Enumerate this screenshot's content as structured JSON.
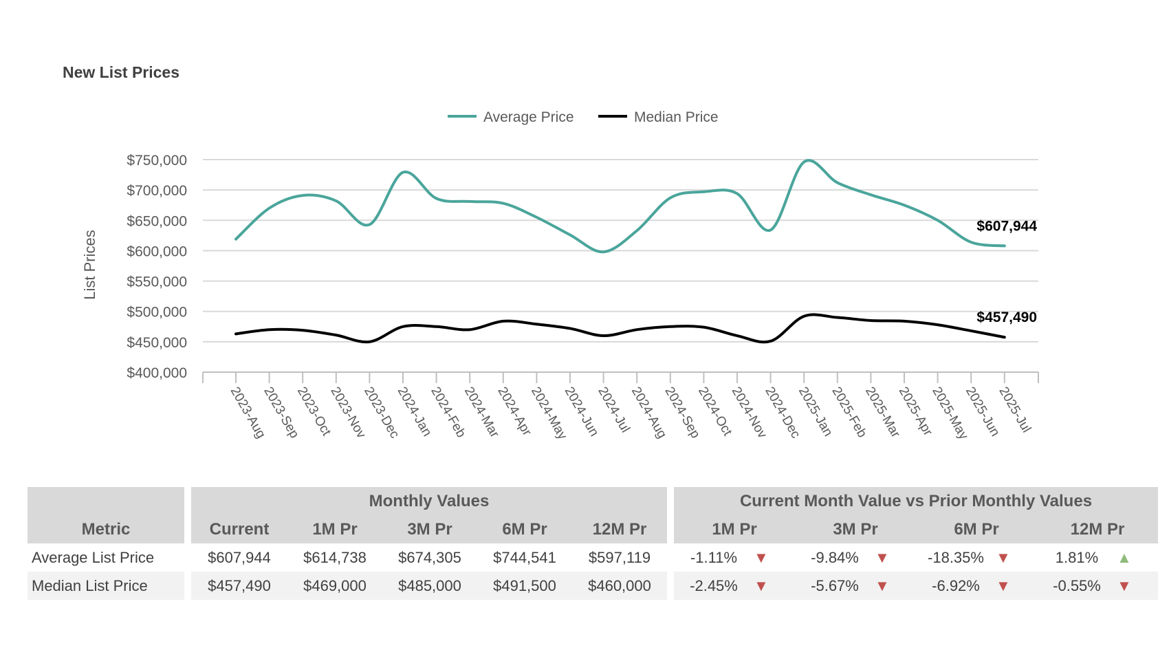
{
  "title": "New List Prices",
  "chart_data": {
    "type": "line",
    "x": [
      "2023-Aug",
      "2023-Sep",
      "2023-Oct",
      "2023-Nov",
      "2023-Dec",
      "2024-Jan",
      "2024-Feb",
      "2024-Mar",
      "2024-Apr",
      "2024-May",
      "2024-Jun",
      "2024-Jul",
      "2024-Aug",
      "2024-Sep",
      "2024-Oct",
      "2024-Nov",
      "2024-Dec",
      "2025-Jan",
      "2025-Feb",
      "2025-Mar",
      "2025-Apr",
      "2025-May",
      "2025-Jun",
      "2025-Jul"
    ],
    "series": [
      {
        "name": "Average Price",
        "color": "#4aa59b",
        "values": [
          619000,
          670000,
          691000,
          682000,
          643000,
          729000,
          686000,
          681000,
          678000,
          655000,
          626000,
          598000,
          633000,
          687000,
          697000,
          694000,
          634000,
          746000,
          712000,
          692000,
          675000,
          650000,
          614000,
          607944
        ],
        "end_label": "$607,944"
      },
      {
        "name": "Median Price",
        "color": "#000000",
        "values": [
          463000,
          470000,
          469000,
          461000,
          450000,
          475000,
          475000,
          470000,
          484000,
          479000,
          472000,
          460000,
          470000,
          475000,
          474000,
          460000,
          451000,
          492000,
          490000,
          485000,
          484000,
          478000,
          468000,
          457490
        ],
        "end_label": "$457,490"
      }
    ],
    "ylabel": "List Prices",
    "ylim": [
      400000,
      750000
    ],
    "yticks": [
      400000,
      450000,
      500000,
      550000,
      600000,
      650000,
      700000,
      750000
    ],
    "ytick_labels": [
      "$400,000",
      "$450,000",
      "$500,000",
      "$550,000",
      "$600,000",
      "$650,000",
      "$700,000",
      "$750,000"
    ],
    "grid": true,
    "legend": "top-center"
  },
  "table": {
    "metric_header": "Metric",
    "group1_header": "Monthly Values",
    "group2_header": "Current Month Value vs Prior Monthly Values",
    "value_columns": [
      "Current",
      "1M Pr",
      "3M Pr",
      "6M Pr",
      "12M Pr"
    ],
    "pct_columns": [
      "1M Pr",
      "3M Pr",
      "6M Pr",
      "12M Pr"
    ],
    "rows": [
      {
        "metric": "Average List Price",
        "values": [
          "$607,944",
          "$614,738",
          "$674,305",
          "$744,541",
          "$597,119"
        ],
        "pcts": [
          "-1.11%",
          "-9.84%",
          "-18.35%",
          "1.81%"
        ],
        "dirs": [
          "down",
          "down",
          "down",
          "up"
        ]
      },
      {
        "metric": "Median List Price",
        "values": [
          "$457,490",
          "$469,000",
          "$485,000",
          "$491,500",
          "$460,000"
        ],
        "pcts": [
          "-2.45%",
          "-5.67%",
          "-6.92%",
          "-0.55%"
        ],
        "dirs": [
          "down",
          "down",
          "down",
          "down"
        ]
      }
    ],
    "arrow_down_color": "#c0504d",
    "arrow_up_color": "#8fbc7a"
  }
}
